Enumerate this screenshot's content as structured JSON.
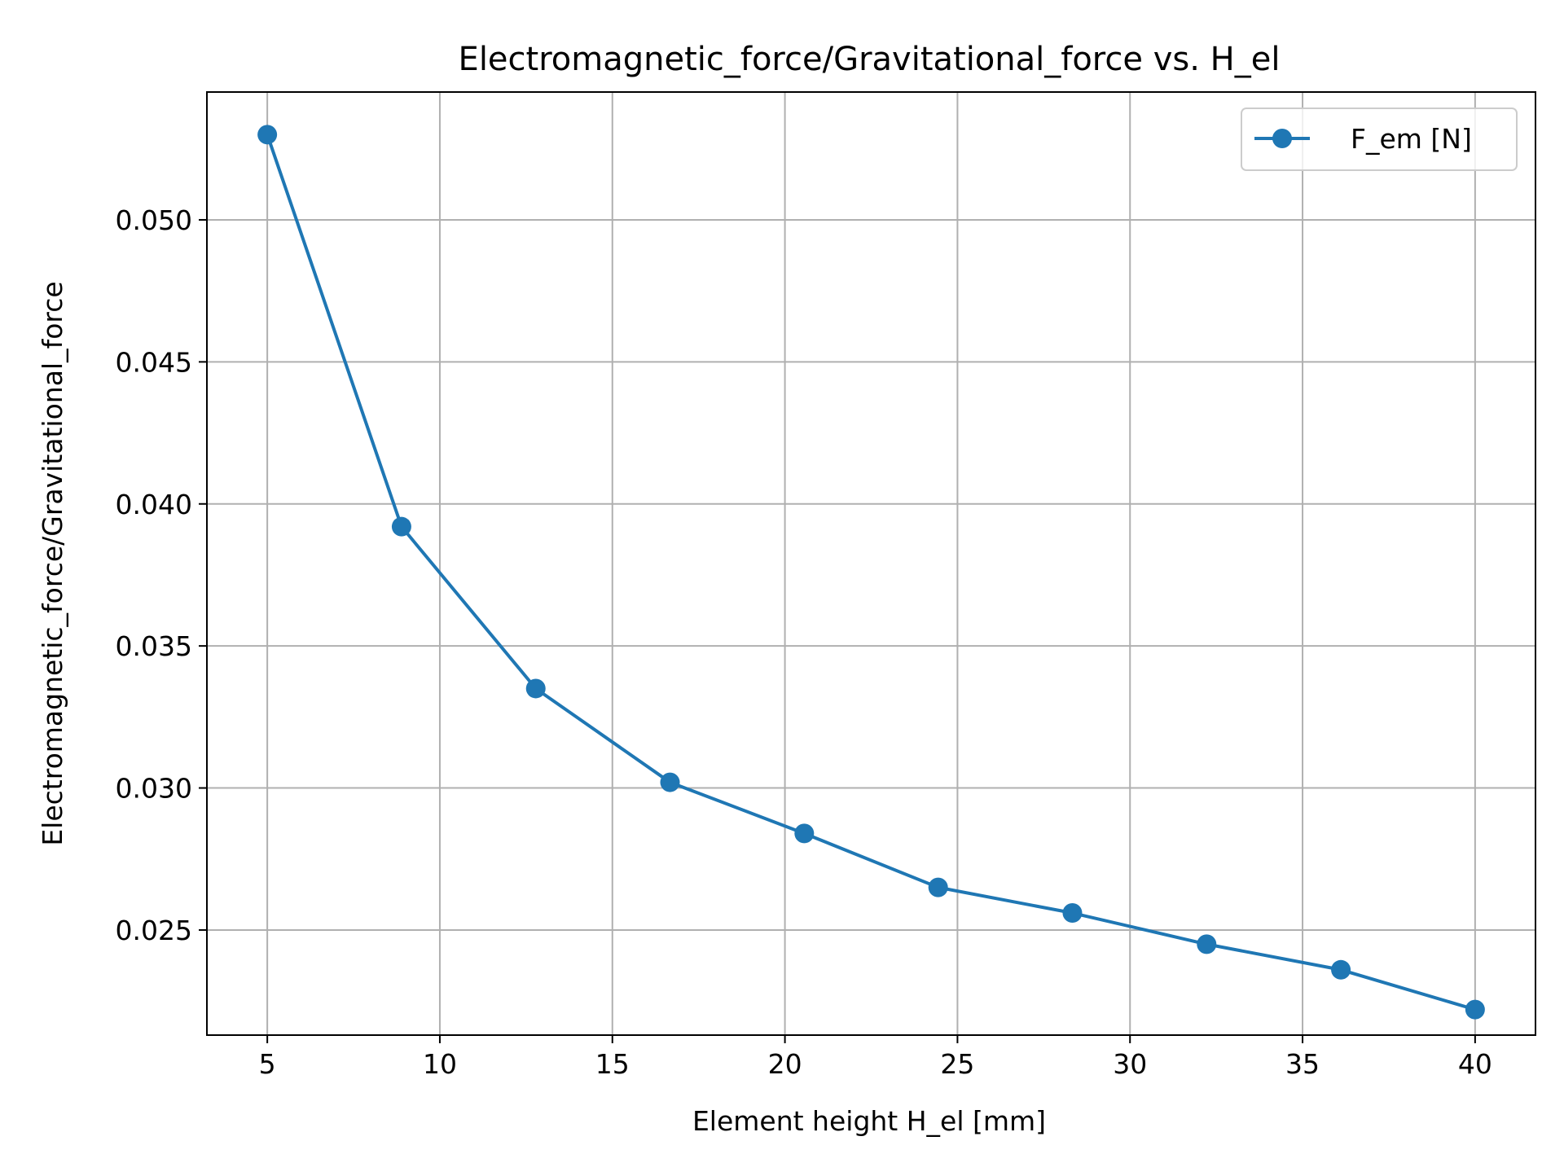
{
  "chart_data": {
    "type": "line",
    "title": "Electromagnetic_force/Gravitational_force vs. H_el",
    "xlabel": "Element height H_el [mm]",
    "ylabel": "Electromagnetic_force/Gravitational_force",
    "xlim": [
      3.25,
      41.75
    ],
    "ylim": [
      0.0213,
      0.0545
    ],
    "x_ticks": [
      5,
      10,
      15,
      20,
      25,
      30,
      35,
      40
    ],
    "y_ticks": [
      0.025,
      0.03,
      0.035,
      0.04,
      0.045,
      0.05
    ],
    "x_tick_labels": [
      "5",
      "10",
      "15",
      "20",
      "25",
      "30",
      "35",
      "40"
    ],
    "y_tick_labels": [
      "0.025",
      "0.030",
      "0.035",
      "0.040",
      "0.045",
      "0.050"
    ],
    "grid": true,
    "legend_position": "top-right",
    "series": [
      {
        "name": "F_em [N]",
        "color": "#1f77b4",
        "marker": "circle",
        "x": [
          5.0,
          8.89,
          12.78,
          16.67,
          20.56,
          24.44,
          28.33,
          32.22,
          36.11,
          40.0
        ],
        "y": [
          0.053,
          0.0392,
          0.0335,
          0.0302,
          0.0284,
          0.0265,
          0.0256,
          0.0245,
          0.0236,
          0.0222
        ]
      }
    ]
  }
}
